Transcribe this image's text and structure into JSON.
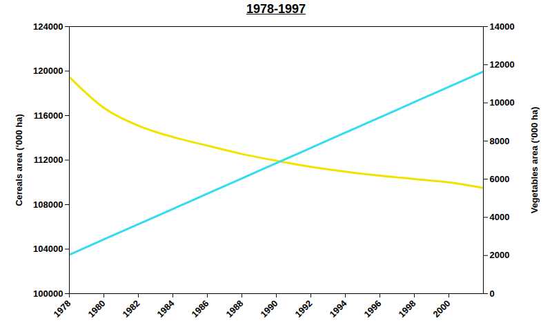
{
  "chart_data": {
    "type": "line",
    "title": "1978-1997",
    "x": [
      1978,
      1980,
      1982,
      1984,
      1986,
      1988,
      1990,
      1992,
      1994,
      1996,
      1998,
      2000,
      2002
    ],
    "xlim": [
      1978,
      2002
    ],
    "xticks": [
      1978,
      1980,
      1982,
      1984,
      1986,
      1988,
      1990,
      1992,
      1994,
      1996,
      1998,
      2000
    ],
    "ylim": [
      100000,
      124000
    ],
    "yticks": [
      100000,
      104000,
      108000,
      112000,
      116000,
      120000,
      124000
    ],
    "y2lim": [
      0,
      14000
    ],
    "y2ticks": [
      0,
      2000,
      4000,
      6000,
      8000,
      10000,
      12000,
      14000
    ],
    "series": [
      {
        "name": "Cereals area (‘000 ha)",
        "color": "#f2e200",
        "values": [
          119470,
          116700,
          115100,
          114080,
          113300,
          112550,
          111940,
          111400,
          110960,
          110600,
          110300,
          110000,
          109500
        ]
      },
      {
        "name": "Vegetables area (‘000 ha)",
        "color": "#33dcef",
        "axis": "y2",
        "values": [
          2040,
          2840,
          3640,
          4440,
          5240,
          6040,
          6840,
          7640,
          8440,
          9240,
          10040,
          10840,
          11640
        ]
      }
    ]
  }
}
